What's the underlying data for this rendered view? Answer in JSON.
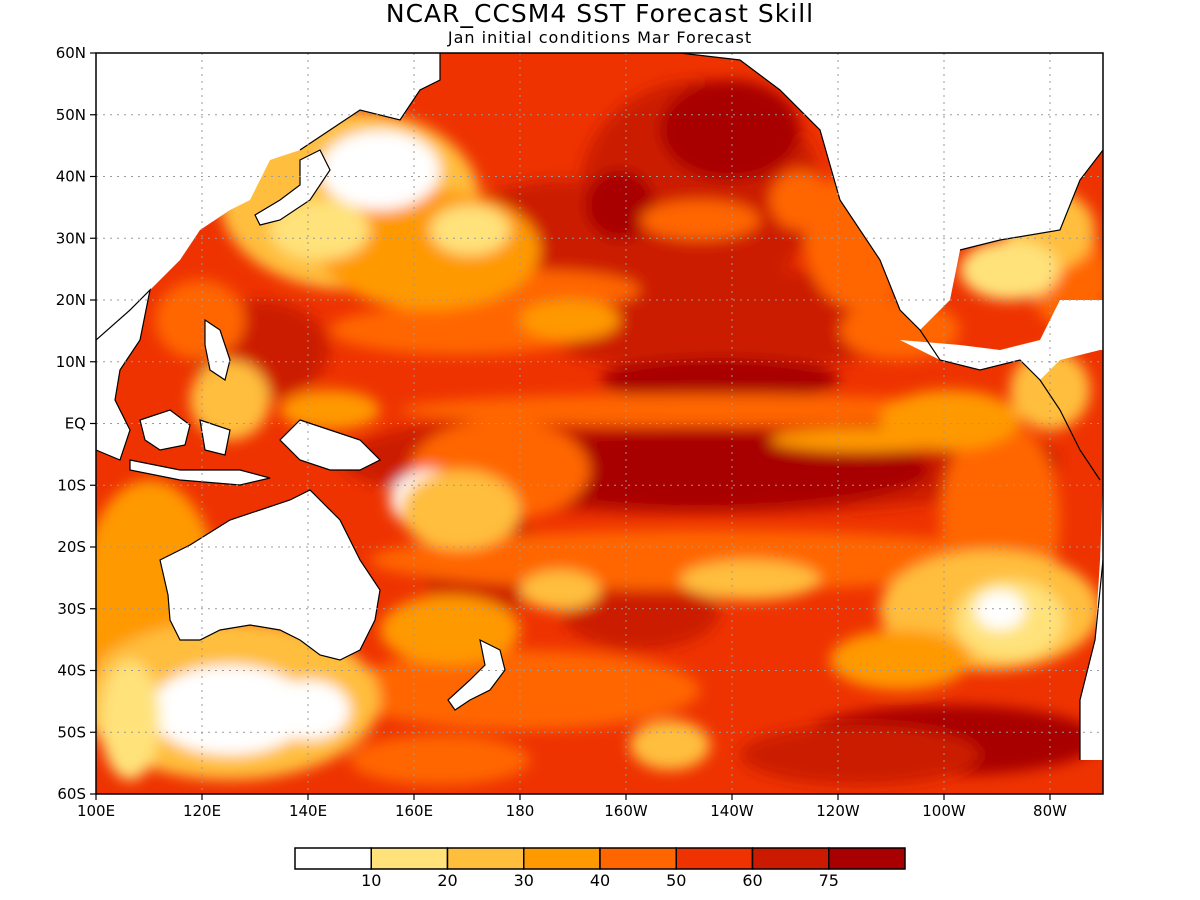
{
  "title": "NCAR_CCSM4  SST Forecast Skill",
  "subtitle": "Jan initial conditions  Mar Forecast",
  "lat_labels": [
    "60N",
    "50N",
    "40N",
    "30N",
    "20N",
    "10N",
    "EQ",
    "10S",
    "20S",
    "30S",
    "40S",
    "50S",
    "60S"
  ],
  "lon_labels": [
    "100E",
    "120E",
    "140E",
    "160E",
    "180",
    "160W",
    "140W",
    "120W",
    "100W",
    "80W"
  ],
  "colorbar": {
    "colors": [
      "#ffffff",
      "#ffe27a",
      "#ffbe3c",
      "#ff9900",
      "#ff6600",
      "#ee3300",
      "#cc1a00",
      "#a80000"
    ],
    "labels": [
      "10",
      "20",
      "30",
      "40",
      "50",
      "60",
      "75"
    ]
  }
}
